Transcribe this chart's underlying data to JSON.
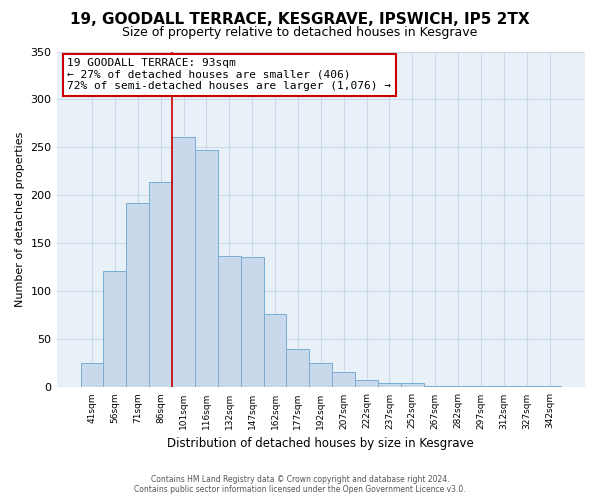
{
  "title": "19, GOODALL TERRACE, KESGRAVE, IPSWICH, IP5 2TX",
  "subtitle": "Size of property relative to detached houses in Kesgrave",
  "xlabel": "Distribution of detached houses by size in Kesgrave",
  "ylabel": "Number of detached properties",
  "bar_labels": [
    "41sqm",
    "56sqm",
    "71sqm",
    "86sqm",
    "101sqm",
    "116sqm",
    "132sqm",
    "147sqm",
    "162sqm",
    "177sqm",
    "192sqm",
    "207sqm",
    "222sqm",
    "237sqm",
    "252sqm",
    "267sqm",
    "282sqm",
    "297sqm",
    "312sqm",
    "327sqm",
    "342sqm"
  ],
  "bar_values": [
    25,
    121,
    192,
    214,
    261,
    247,
    137,
    136,
    76,
    40,
    25,
    16,
    8,
    5,
    5,
    2,
    1,
    1,
    1,
    1,
    1
  ],
  "bar_color": "#c9d9ec",
  "bar_edge_color": "#7aadd4",
  "annotation_box_text": "19 GOODALL TERRACE: 93sqm\n← 27% of detached houses are smaller (406)\n72% of semi-detached houses are larger (1,076) →",
  "annotation_box_color": "#ffffff",
  "annotation_box_edge_color": "#cc0000",
  "annotation_line_color": "#cc0000",
  "vline_x_pos": 3.5,
  "ylim": [
    0,
    350
  ],
  "yticks": [
    0,
    50,
    100,
    150,
    200,
    250,
    300,
    350
  ],
  "grid_color": "#ccd9e8",
  "background_color": "#e8f0f8",
  "footer_line1": "Contains HM Land Registry data © Crown copyright and database right 2024.",
  "footer_line2": "Contains public sector information licensed under the Open Government Licence v3.0.",
  "title_fontsize": 11,
  "subtitle_fontsize": 9,
  "bar_width": 1.0
}
